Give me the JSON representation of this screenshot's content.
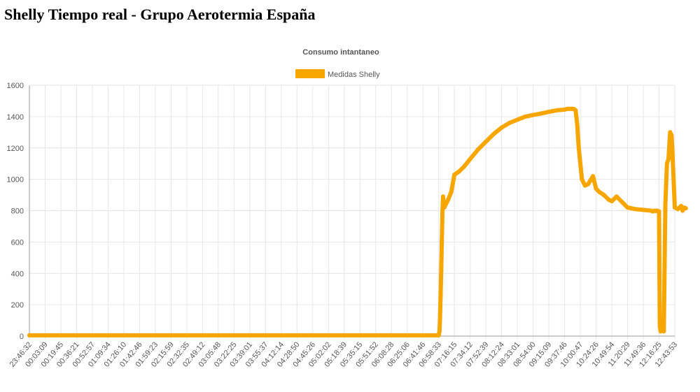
{
  "page": {
    "title": "Shelly Tiempo real - Grupo Aerotermia España"
  },
  "colors": {
    "series": "#f7a600",
    "grid": "#e6e6e6",
    "axis": "#999999",
    "text": "#555555"
  },
  "chart_data": {
    "type": "line",
    "title": "Consumo intantaneo",
    "xlabel": "",
    "ylabel": "",
    "ylim": [
      0,
      1600
    ],
    "yticks": [
      0,
      200,
      400,
      600,
      800,
      1000,
      1200,
      1400,
      1600
    ],
    "grid": true,
    "legend_position": "top-center",
    "x_tick_labels": [
      "23:46:32",
      "00:03:09",
      "00:19:45",
      "00:36:21",
      "00:52:57",
      "01:09:34",
      "01:26:10",
      "01:42:46",
      "01:59:23",
      "02:15:59",
      "02:32:35",
      "02:49:12",
      "03:05:48",
      "03:22:25",
      "03:39:01",
      "03:55:37",
      "04:12:14",
      "04:28:50",
      "04:45:26",
      "05:02:02",
      "05:18:39",
      "05:35:15",
      "05:51:52",
      "06:08:28",
      "06:25:06",
      "06:41:46",
      "06:58:33",
      "07:16:15",
      "07:34:12",
      "07:52:39",
      "08:12:24",
      "08:33:01",
      "08:54:00",
      "09:15:09",
      "09:37:46",
      "10:00:47",
      "10:24:26",
      "10:49:54",
      "11:20:29",
      "11:49:36",
      "12:16:25",
      "12:43:53"
    ],
    "series": [
      {
        "name": "Medidas Shelly",
        "x": [
          0,
          26.0,
          26.05,
          26.08,
          26.12,
          26.16,
          26.2,
          26.24,
          26.28,
          26.35,
          26.45,
          26.6,
          26.8,
          27.0,
          27.3,
          27.6,
          28.0,
          28.5,
          29.0,
          29.5,
          30.0,
          30.5,
          31.0,
          31.5,
          32.0,
          32.5,
          33.0,
          33.5,
          34.0,
          34.2,
          34.4,
          34.5,
          34.6,
          34.7,
          34.8,
          34.9,
          35.1,
          35.3,
          35.5,
          35.8,
          36.0,
          36.2,
          36.5,
          36.8,
          37.0,
          37.3,
          37.7,
          38.0,
          38.5,
          39.0,
          39.5,
          39.6,
          39.7,
          39.8,
          39.9,
          40.0,
          40.05,
          40.1,
          40.15,
          40.2,
          40.3,
          40.4,
          40.5,
          40.6,
          40.7,
          40.8,
          40.9,
          41.0,
          41.2,
          41.4,
          41.5,
          41.6,
          41.7
        ],
        "values": [
          5,
          5,
          30,
          100,
          250,
          420,
          610,
          800,
          890,
          820,
          840,
          870,
          920,
          1030,
          1050,
          1080,
          1130,
          1190,
          1240,
          1290,
          1330,
          1360,
          1380,
          1400,
          1410,
          1420,
          1430,
          1440,
          1445,
          1450,
          1450,
          1450,
          1448,
          1440,
          1350,
          1200,
          1000,
          960,
          970,
          1020,
          940,
          920,
          900,
          870,
          860,
          890,
          850,
          820,
          810,
          805,
          800,
          795,
          800,
          798,
          800,
          795,
          60,
          30,
          40,
          50,
          30,
          840,
          1100,
          1130,
          1300,
          1280,
          1050,
          820,
          810,
          830,
          800,
          820,
          815
        ]
      }
    ]
  }
}
